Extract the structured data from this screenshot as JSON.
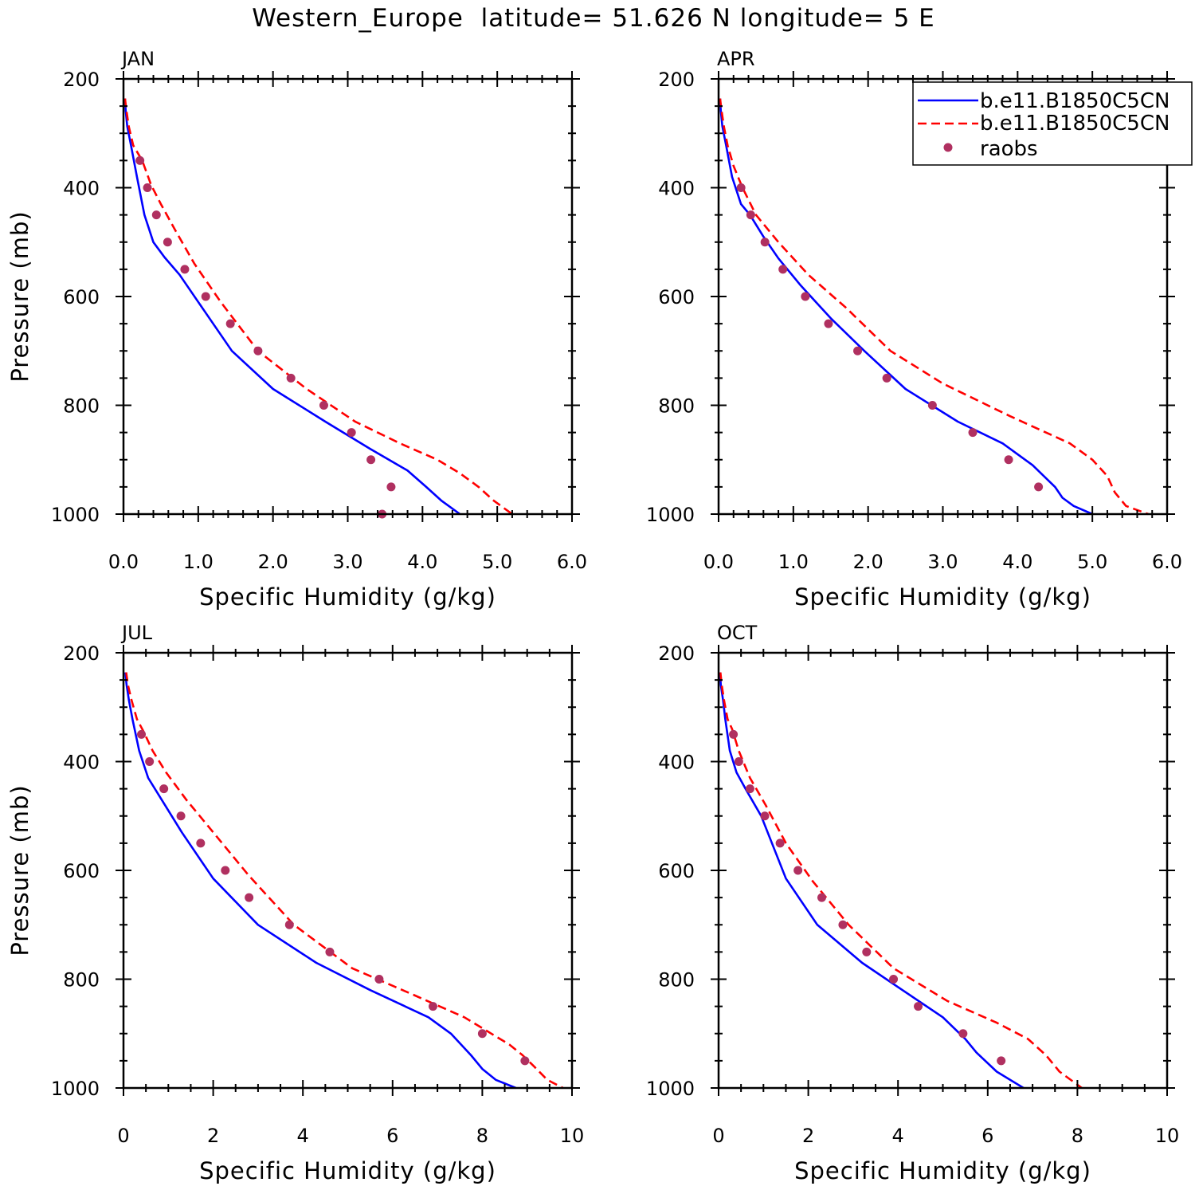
{
  "title": "Western_Europe  latitude= 51.626 N longitude= 5 E",
  "legend": {
    "placement": "top-right of APR panel",
    "entries": [
      {
        "label": "b.e11.B1850C5CN",
        "style": "solid",
        "color": "#0000ff"
      },
      {
        "label": "b.e11.B1850C5CN",
        "style": "dashed",
        "color": "#ff0000"
      },
      {
        "label": "raobs",
        "style": "marker",
        "color": "#b03060"
      }
    ]
  },
  "chart_data": [
    {
      "type": "line",
      "panel": "JAN",
      "title": "JAN",
      "xlabel": "Specific Humidity (g/kg)",
      "ylabel": "Pressure (mb)",
      "xlim": [
        0,
        6
      ],
      "ylim": [
        1000,
        200
      ],
      "xticks": [
        0,
        1,
        2,
        3,
        4,
        5,
        6
      ],
      "xticklabels": [
        "0.0",
        "1.0",
        "2.0",
        "3.0",
        "4.0",
        "5.0",
        "6.0"
      ],
      "yticks": [
        200,
        400,
        600,
        800,
        1000
      ],
      "yticklabels": [
        "200",
        "400",
        "600",
        "800",
        "1000"
      ],
      "series": [
        {
          "name": "b.e11.B1850C5CN",
          "style": "solid",
          "color": "#0000ff",
          "x": [
            0.02,
            0.03,
            0.05,
            0.1,
            0.18,
            0.28,
            0.4,
            0.55,
            0.75,
            1.0,
            1.45,
            2.0,
            2.7,
            3.3,
            3.8,
            4.05,
            4.25,
            4.5
          ],
          "y": [
            236,
            259,
            287,
            322,
            380,
            450,
            500,
            528,
            560,
            610,
            700,
            770,
            830,
            880,
            920,
            950,
            975,
            1000
          ]
        },
        {
          "name": "b.e11.B1850C5CN",
          "style": "dashed",
          "color": "#ff0000",
          "x": [
            0.02,
            0.04,
            0.07,
            0.13,
            0.25,
            0.37,
            0.5,
            0.7,
            0.95,
            1.3,
            1.8,
            2.45,
            3.1,
            3.7,
            4.2,
            4.5,
            4.75,
            4.95,
            5.2
          ],
          "y": [
            236,
            259,
            287,
            322,
            350,
            395,
            430,
            480,
            540,
            610,
            700,
            770,
            830,
            870,
            900,
            925,
            950,
            975,
            1000
          ]
        },
        {
          "name": "raobs",
          "style": "marker",
          "color": "#b03060",
          "x": [
            0.22,
            0.32,
            0.44,
            0.59,
            0.82,
            1.1,
            1.43,
            1.8,
            2.24,
            2.68,
            3.05,
            3.31,
            3.58,
            3.46
          ],
          "y": [
            350,
            400,
            450,
            500,
            550,
            600,
            650,
            700,
            750,
            800,
            850,
            900,
            950,
            1000
          ]
        }
      ]
    },
    {
      "type": "line",
      "panel": "APR",
      "title": "APR",
      "xlabel": "Specific Humidity (g/kg)",
      "ylabel": "",
      "xlim": [
        0,
        6
      ],
      "ylim": [
        1000,
        200
      ],
      "xticks": [
        0,
        1,
        2,
        3,
        4,
        5,
        6
      ],
      "xticklabels": [
        "0.0",
        "1.0",
        "2.0",
        "3.0",
        "4.0",
        "5.0",
        "6.0"
      ],
      "yticks": [
        200,
        400,
        600,
        800,
        1000
      ],
      "yticklabels": [
        "200",
        "400",
        "600",
        "800",
        "1000"
      ],
      "series": [
        {
          "name": "b.e11.B1850C5CN",
          "style": "solid",
          "color": "#0000ff",
          "x": [
            0.02,
            0.03,
            0.05,
            0.1,
            0.18,
            0.3,
            0.42,
            0.6,
            0.8,
            1.1,
            1.5,
            1.95,
            2.5,
            3.2,
            3.8,
            4.2,
            4.5,
            4.6,
            4.75,
            5.0
          ],
          "y": [
            236,
            259,
            287,
            322,
            380,
            430,
            450,
            490,
            530,
            580,
            640,
            700,
            770,
            830,
            870,
            910,
            950,
            970,
            985,
            1000
          ]
        },
        {
          "name": "b.e11.B1850C5CN",
          "style": "dashed",
          "color": "#ff0000",
          "x": [
            0.02,
            0.04,
            0.07,
            0.12,
            0.2,
            0.32,
            0.5,
            0.8,
            1.2,
            1.7,
            2.3,
            3.0,
            3.9,
            4.7,
            5.0,
            5.2,
            5.3,
            5.45,
            5.75
          ],
          "y": [
            236,
            259,
            287,
            322,
            360,
            400,
            450,
            500,
            560,
            620,
            700,
            760,
            820,
            870,
            900,
            930,
            960,
            985,
            1000
          ]
        },
        {
          "name": "raobs",
          "style": "marker",
          "color": "#b03060",
          "x": [
            0.3,
            0.43,
            0.62,
            0.86,
            1.16,
            1.47,
            1.86,
            2.25,
            2.86,
            3.4,
            3.88,
            4.28
          ],
          "y": [
            400,
            450,
            500,
            550,
            600,
            650,
            700,
            750,
            800,
            850,
            900,
            950
          ]
        }
      ]
    },
    {
      "type": "line",
      "panel": "JUL",
      "title": "JUL",
      "xlabel": "Specific Humidity (g/kg)",
      "ylabel": "Pressure (mb)",
      "xlim": [
        0,
        10
      ],
      "ylim": [
        1000,
        200
      ],
      "xticks": [
        0,
        2,
        4,
        6,
        8,
        10
      ],
      "xticklabels": [
        "0",
        "2",
        "4",
        "6",
        "8",
        "10"
      ],
      "yticks": [
        200,
        400,
        600,
        800,
        1000
      ],
      "yticklabels": [
        "200",
        "400",
        "600",
        "800",
        "1000"
      ],
      "series": [
        {
          "name": "b.e11.B1850C5CN",
          "style": "solid",
          "color": "#0000ff",
          "x": [
            0.04,
            0.07,
            0.12,
            0.2,
            0.35,
            0.55,
            0.85,
            1.3,
            2.0,
            3.0,
            4.3,
            5.5,
            6.8,
            7.3,
            7.75,
            8.0,
            8.3,
            8.75
          ],
          "y": [
            236,
            259,
            287,
            322,
            380,
            430,
            470,
            530,
            615,
            700,
            770,
            820,
            870,
            900,
            940,
            965,
            985,
            1000
          ]
        },
        {
          "name": "b.e11.B1850C5CN",
          "style": "dashed",
          "color": "#ff0000",
          "x": [
            0.06,
            0.1,
            0.18,
            0.3,
            0.45,
            0.65,
            0.95,
            1.4,
            2.0,
            2.8,
            3.8,
            5.1,
            6.5,
            7.6,
            8.2,
            8.6,
            8.9,
            9.15,
            9.45,
            9.8
          ],
          "y": [
            236,
            259,
            287,
            322,
            345,
            380,
            420,
            470,
            530,
            610,
            700,
            780,
            830,
            870,
            900,
            920,
            940,
            960,
            985,
            1000
          ]
        },
        {
          "name": "raobs",
          "style": "marker",
          "color": "#b03060",
          "x": [
            0.4,
            0.58,
            0.9,
            1.28,
            1.72,
            2.27,
            2.8,
            3.7,
            4.6,
            5.7,
            6.9,
            8.0,
            8.95
          ],
          "y": [
            350,
            400,
            450,
            500,
            550,
            600,
            650,
            700,
            750,
            800,
            850,
            900,
            950
          ]
        }
      ]
    },
    {
      "type": "line",
      "panel": "OCT",
      "title": "OCT",
      "xlabel": "Specific Humidity (g/kg)",
      "ylabel": "",
      "xlim": [
        0,
        10
      ],
      "ylim": [
        1000,
        200
      ],
      "xticks": [
        0,
        2,
        4,
        6,
        8,
        10
      ],
      "xticklabels": [
        "0",
        "2",
        "4",
        "6",
        "8",
        "10"
      ],
      "yticks": [
        200,
        400,
        600,
        800,
        1000
      ],
      "yticklabels": [
        "200",
        "400",
        "600",
        "800",
        "1000"
      ],
      "series": [
        {
          "name": "b.e11.B1850C5CN",
          "style": "solid",
          "color": "#0000ff",
          "x": [
            0.03,
            0.05,
            0.1,
            0.15,
            0.25,
            0.4,
            0.6,
            0.95,
            1.5,
            2.2,
            3.2,
            4.1,
            5.0,
            5.5,
            5.75,
            6.2,
            6.8
          ],
          "y": [
            236,
            259,
            287,
            322,
            380,
            420,
            450,
            500,
            615,
            700,
            770,
            820,
            870,
            910,
            935,
            970,
            1000
          ]
        },
        {
          "name": "b.e11.B1850C5CN",
          "style": "dashed",
          "color": "#ff0000",
          "x": [
            0.04,
            0.07,
            0.12,
            0.2,
            0.3,
            0.45,
            0.7,
            1.05,
            1.5,
            2.1,
            2.9,
            3.9,
            5.1,
            6.2,
            6.9,
            7.3,
            7.6,
            8.1
          ],
          "y": [
            236,
            259,
            287,
            322,
            340,
            380,
            430,
            480,
            550,
            620,
            700,
            780,
            840,
            880,
            910,
            940,
            970,
            1000
          ]
        },
        {
          "name": "raobs",
          "style": "marker",
          "color": "#b03060",
          "x": [
            0.33,
            0.45,
            0.7,
            1.03,
            1.37,
            1.77,
            2.3,
            2.77,
            3.3,
            3.9,
            4.45,
            5.45,
            6.3
          ],
          "y": [
            350,
            400,
            450,
            500,
            550,
            600,
            650,
            700,
            750,
            800,
            850,
            900,
            950
          ]
        }
      ]
    }
  ]
}
